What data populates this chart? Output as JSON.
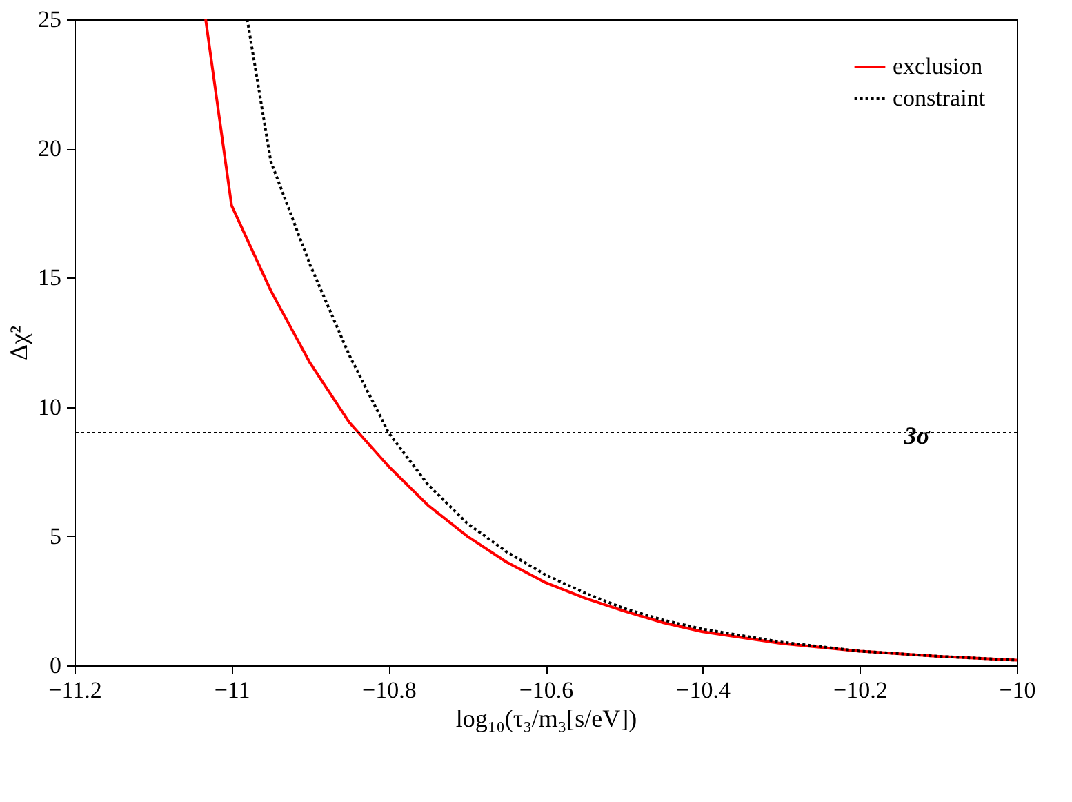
{
  "chart_data": {
    "type": "line",
    "xlabel": "log₁₀(τ₃/m₃[s/eV])",
    "ylabel": "Δχ²",
    "xlim": [
      -11.2,
      -10
    ],
    "xticks": [
      -11.2,
      -11,
      -10.8,
      -10.6,
      -10.4,
      -10.2,
      -10
    ],
    "ylim": [
      0,
      25
    ],
    "yticks": [
      0,
      5,
      10,
      15,
      20,
      25
    ],
    "grid": false,
    "legend": "top right",
    "marker": "none",
    "series": [
      {
        "name": "exclusion",
        "color": "#ff0000",
        "line_style": "solid",
        "x": [
          -11.033,
          -11,
          -10.95,
          -10.9,
          -10.85,
          -10.8,
          -10.75,
          -10.7,
          -10.65,
          -10.6,
          -10.55,
          -10.5,
          -10.45,
          -10.4,
          -10.3,
          -10.2,
          -10.1,
          -10
        ],
        "values": [
          25,
          17.8,
          14.5,
          11.7,
          9.4,
          7.7,
          6.2,
          5.0,
          4.0,
          3.2,
          2.6,
          2.1,
          1.65,
          1.3,
          0.85,
          0.55,
          0.35,
          0.2
        ]
      },
      {
        "name": "constraint",
        "color": "#000000",
        "line_style": "dotted",
        "x": [
          -10.98,
          -10.95,
          -10.9,
          -10.85,
          -10.8,
          -10.75,
          -10.7,
          -10.65,
          -10.6,
          -10.55,
          -10.5,
          -10.45,
          -10.4,
          -10.3,
          -10.2,
          -10.1,
          -10
        ],
        "values": [
          25,
          19.5,
          15.5,
          12,
          9,
          7,
          5.5,
          4.4,
          3.5,
          2.8,
          2.2,
          1.75,
          1.4,
          0.9,
          0.55,
          0.35,
          0.2
        ]
      }
    ],
    "ref_lines": [
      {
        "axis": "y",
        "value": 9,
        "label": "3σ",
        "color": "#000000",
        "line_style": "dotted"
      }
    ]
  }
}
